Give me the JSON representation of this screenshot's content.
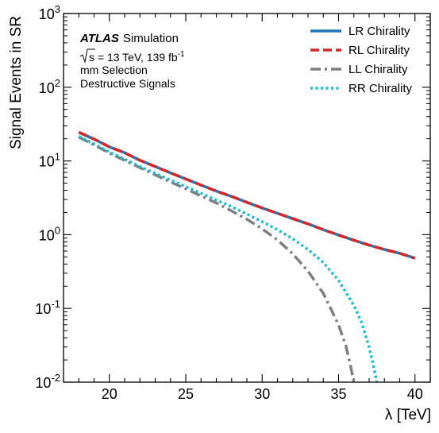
{
  "chart_data": {
    "type": "line",
    "xlabel": "λ [TeV]",
    "ylabel": "Signal Events in SR",
    "xlim": [
      17,
      41
    ],
    "ylim": [
      0.01,
      1000
    ],
    "yscale": "log",
    "x_ticks": [
      20,
      25,
      30,
      35,
      40
    ],
    "y_ticks": [
      {
        "value": 0.01,
        "base": "10",
        "exp": "-2"
      },
      {
        "value": 0.1,
        "base": "10",
        "exp": "-1"
      },
      {
        "value": 1,
        "base": "10",
        "exp": "0"
      },
      {
        "value": 10,
        "base": "10",
        "exp": "1"
      },
      {
        "value": 100,
        "base": "10",
        "exp": "2"
      },
      {
        "value": 1000,
        "base": "10",
        "exp": "3"
      }
    ],
    "legend_position": "top-right",
    "annotation": {
      "experiment": "ATLAS",
      "status": "Simulation",
      "energy_pre": "s = 13 TeV, 139 fb",
      "energy_exp": "-1",
      "selection": "mm Selection",
      "signal_type": "Destructive Signals"
    },
    "series": [
      {
        "name": "LR Chirality",
        "color": "#1f77b4",
        "style": "solid",
        "x": [
          18,
          19,
          20,
          21,
          22,
          23,
          24,
          25,
          26,
          27,
          28,
          29,
          30,
          31,
          32,
          33,
          34,
          35,
          36,
          37,
          38,
          39,
          40
        ],
        "y": [
          24.5,
          19.8,
          15.5,
          12.9,
          10.2,
          8.4,
          6.9,
          5.7,
          4.7,
          3.9,
          3.3,
          2.75,
          2.3,
          1.95,
          1.65,
          1.4,
          1.17,
          0.99,
          0.84,
          0.72,
          0.63,
          0.56,
          0.48
        ]
      },
      {
        "name": "RL Chirality",
        "color": "#d62728",
        "style": "dashed",
        "x": [
          18,
          19,
          20,
          21,
          22,
          23,
          24,
          25,
          26,
          27,
          28,
          29,
          30,
          31,
          32,
          33,
          34,
          35,
          36,
          37,
          38,
          39,
          40
        ],
        "y": [
          24.5,
          19.8,
          15.5,
          12.9,
          10.2,
          8.4,
          6.9,
          5.7,
          4.7,
          3.9,
          3.3,
          2.75,
          2.3,
          1.95,
          1.65,
          1.4,
          1.17,
          0.99,
          0.84,
          0.72,
          0.63,
          0.56,
          0.48
        ]
      },
      {
        "name": "LL Chirality",
        "color": "#7f7f7f",
        "style": "dashdot",
        "x": [
          18,
          19,
          20,
          21,
          22,
          23,
          24,
          25,
          26,
          27,
          28,
          29,
          30,
          31,
          32,
          33,
          34,
          35,
          35.5,
          35.8,
          36
        ],
        "y": [
          21,
          16.5,
          12.8,
          10.2,
          8.1,
          6.5,
          5.2,
          4.2,
          3.35,
          2.7,
          2.1,
          1.62,
          1.2,
          0.85,
          0.55,
          0.32,
          0.16,
          0.06,
          0.03,
          0.016,
          0.01
        ]
      },
      {
        "name": "RR Chirality",
        "color": "#17becf",
        "style": "dotted",
        "x": [
          18,
          19,
          20,
          21,
          22,
          23,
          24,
          25,
          26,
          27,
          28,
          29,
          30,
          31,
          32,
          33,
          34,
          35,
          36,
          36.5,
          37,
          37.3,
          37.5
        ],
        "y": [
          21.5,
          17,
          13.2,
          10.6,
          8.4,
          6.8,
          5.5,
          4.5,
          3.65,
          2.95,
          2.4,
          1.9,
          1.5,
          1.17,
          0.88,
          0.63,
          0.42,
          0.24,
          0.11,
          0.065,
          0.03,
          0.016,
          0.01
        ]
      }
    ]
  }
}
